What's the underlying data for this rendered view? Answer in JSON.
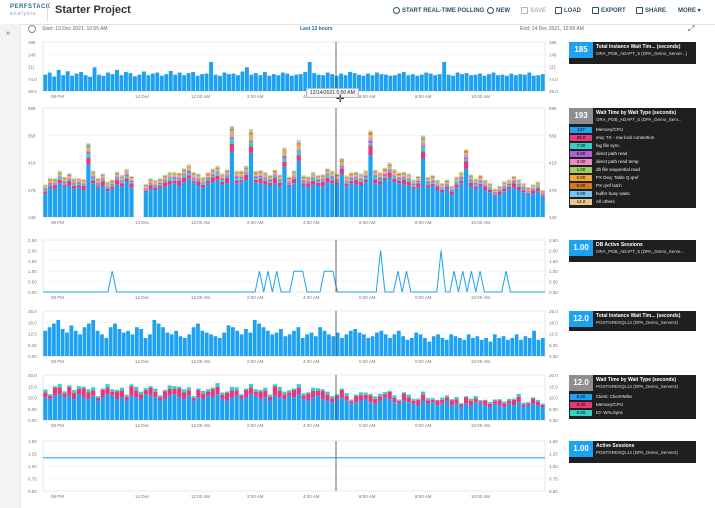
{
  "app": {
    "brand_line1": "PERFSTACK",
    "brand_line2": "analysis",
    "title": "Starter Project"
  },
  "toolbar": [
    {
      "name": "start-real-time-polling-button",
      "label": "START REAL-TIME POLLING",
      "icon": "clock-icon",
      "enabled": true
    },
    {
      "name": "new-button",
      "label": "NEW",
      "icon": "plus-icon",
      "enabled": true
    },
    {
      "name": "save-button",
      "label": "SAVE",
      "icon": "save-icon",
      "enabled": false
    },
    {
      "name": "load-button",
      "label": "LOAD",
      "icon": "folder-icon",
      "enabled": true
    },
    {
      "name": "export-button",
      "label": "EXPORT",
      "icon": "export-icon",
      "enabled": true
    },
    {
      "name": "share-button",
      "label": "SHARE",
      "icon": "share-icon",
      "enabled": true
    },
    {
      "name": "more-button",
      "label": "MORE",
      "icon": "chevron-down-icon",
      "enabled": true
    }
  ],
  "timeline": {
    "start": "Start:  13 Dec 2021, 10:55 AM",
    "range": "Last 12 hours",
    "end": "End:  14 Dec 2021, 10:55 AM"
  },
  "tooltip": "12/14/2021 5:50 AM",
  "colors": {
    "accent": "#1da1f2",
    "panel": "#1f1f1f",
    "gray": "#8e8e8e"
  },
  "chart_data": [
    {
      "type": "bar",
      "title": "Total Instance Wait Tim... (seconds)",
      "subtitle": "ORA_PDB_ADAPT_5 (DPA_Demo_Server...)",
      "current": "185",
      "ylim": [
        0,
        186
      ],
      "yticks_left": [
        "186",
        "148",
        "111",
        "74.0",
        "38.0"
      ],
      "yticks_right": [
        "186",
        "148",
        "111",
        "74.0",
        "38.0"
      ],
      "xticks": [
        "08 PM",
        "14 Dec",
        "12:00 AM",
        "2:00 AM",
        "4:00 AM",
        "6:00 AM",
        "8:00 AM",
        "10:00 AM"
      ],
      "series": [
        {
          "name": "Total Instance Wait Time",
          "color": "#1da1f2",
          "values": [
            62,
            70,
            55,
            80,
            60,
            75,
            58,
            66,
            72,
            60,
            54,
            90,
            62,
            58,
            70,
            64,
            80,
            60,
            72,
            68,
            56,
            62,
            74,
            60,
            66,
            70,
            58,
            64,
            76,
            62,
            70,
            60,
            68,
            72,
            58,
            64,
            66,
            110,
            62,
            58,
            70,
            64,
            66,
            60,
            74,
            90,
            62,
            68,
            60,
            72,
            58,
            64,
            60,
            70,
            66,
            58,
            62,
            64,
            72,
            110,
            68,
            62,
            60,
            70,
            64,
            58,
            66,
            60,
            72,
            68,
            62,
            58,
            66,
            60,
            70,
            64,
            62,
            58,
            60,
            66,
            72,
            60,
            64,
            58,
            62,
            70,
            66,
            60,
            64,
            110,
            62,
            58,
            70,
            64,
            68,
            60,
            62,
            66,
            58,
            64,
            70,
            60,
            62,
            58,
            66,
            60,
            64,
            62,
            70,
            58,
            60,
            64
          ]
        }
      ]
    },
    {
      "type": "bar",
      "title": "Wait Time by Wait Type (seconds)",
      "subtitle": "ORA_PDB_ADAPT_5 (DPA_Demo_Serv...",
      "current": "193",
      "ylim": [
        0,
        698
      ],
      "yticks_left": [
        "698",
        "558",
        "419",
        "279",
        "140"
      ],
      "yticks_right": [
        "698",
        "558",
        "419",
        "279",
        "140"
      ],
      "xticks": [
        "08 PM",
        "14 Dec",
        "12:00 AM",
        "2:00 AM",
        "4:00 AM",
        "6:00 AM",
        "8:00 AM",
        "10:00 AM"
      ],
      "legend": [
        {
          "value": "147",
          "label": "Memory/CPU",
          "color": "#1da1f2"
        },
        {
          "value": "28.0",
          "label": "enq: TX - row lock contention",
          "color": "#e8377a"
        },
        {
          "value": "7.00",
          "label": "log file sync",
          "color": "#35d0c4"
        },
        {
          "value": "6.00",
          "label": "direct path read",
          "color": "#b060d8"
        },
        {
          "value": "3.00",
          "label": "direct path read temp",
          "color": "#f08ac4"
        },
        {
          "value": "1.00",
          "label": "db file sequential read",
          "color": "#9ad060"
        },
        {
          "value": "0.00",
          "label": "PX Deq: Table Q qref",
          "color": "#f0a830"
        },
        {
          "value": "0.00",
          "label": "PX qref latch",
          "color": "#d47820"
        },
        {
          "value": "0.00",
          "label": "buffer busy waits",
          "color": "#70c8f0"
        },
        {
          "value": "14.0",
          "label": "All others",
          "color": "#e8c888"
        }
      ],
      "series_totals": [
        210,
        260,
        250,
        300,
        270,
        280,
        250,
        260,
        240,
        470,
        300,
        260,
        280,
        230,
        250,
        290,
        270,
        320,
        260,
        0,
        0,
        220,
        250,
        240,
        260,
        270,
        290,
        300,
        280,
        310,
        340,
        300,
        280,
        260,
        300,
        310,
        330,
        290,
        300,
        580,
        300,
        310,
        330,
        570,
        310,
        300,
        290,
        280,
        300,
        270,
        450,
        270,
        300,
        500,
        280,
        260,
        290,
        280,
        270,
        310,
        300,
        290,
        380,
        270,
        300,
        290,
        280,
        310,
        550,
        300,
        290,
        330,
        350,
        310,
        300,
        290,
        280,
        250,
        260,
        520,
        260,
        280,
        240,
        220,
        250,
        200,
        260,
        300,
        430,
        270,
        250,
        280,
        240,
        220,
        190,
        200,
        230,
        250,
        260,
        240,
        220,
        200,
        210,
        230,
        180
      ]
    },
    {
      "type": "line",
      "title": "DB Active Sessions",
      "subtitle": "ORA_PDB_ADAPT_5 (DPA_Demo_Serve...",
      "current": "1.00",
      "ylim": [
        0,
        2.5
      ],
      "yticks_left": [
        "2.50",
        "2.00",
        "1.50",
        "1.00",
        "0.50",
        "0.00"
      ],
      "yticks_right": [
        "2.50",
        "2.00",
        "1.50",
        "1.00",
        "0.50",
        "0.00"
      ],
      "xticks": [
        "08 PM",
        "14 Dec",
        "12:00 AM",
        "2:00 AM",
        "4:00 AM",
        "6:00 AM",
        "8:00 AM",
        "10:00 AM"
      ],
      "series": [
        {
          "name": "DB Active Sessions",
          "color": "#1da1f2",
          "values": [
            0,
            0,
            0,
            0,
            0,
            0,
            0,
            0,
            0,
            0,
            0,
            0,
            0,
            0,
            0,
            0,
            1,
            0,
            0,
            0,
            0,
            0,
            0,
            0,
            0,
            0,
            0,
            0,
            0,
            0,
            0,
            0,
            0,
            0,
            0,
            0,
            0,
            0,
            0,
            0,
            0,
            0,
            0,
            0,
            0,
            0,
            0,
            0,
            0,
            0,
            1,
            0,
            1,
            0,
            1,
            0,
            0,
            0,
            1,
            1,
            1,
            0,
            0,
            0,
            0,
            1,
            1,
            1,
            0,
            0,
            0,
            0,
            0,
            0,
            0,
            0,
            0,
            0,
            2,
            0,
            0,
            0,
            1,
            0,
            1,
            0,
            0,
            0,
            0,
            0,
            0,
            0,
            2,
            0,
            0,
            1,
            0,
            1,
            0,
            1,
            0,
            1,
            0,
            0,
            0,
            0,
            0,
            1,
            0,
            0,
            0,
            0,
            0,
            0,
            0,
            0,
            0
          ]
        }
      ]
    },
    {
      "type": "bar",
      "title": "Total Instance Wait Tim... (seconds)",
      "subtitle": "POSTGRESQL12 (DPA_Demo_Server2)",
      "current": "12.0",
      "ylim": [
        0,
        25
      ],
      "yticks_left": [
        "25.0",
        "18.0",
        "12.5",
        "6.25",
        "0.00"
      ],
      "yticks_right": [
        "25.0",
        "18.0",
        "12.5",
        "6.25",
        "0.00"
      ],
      "xticks": [
        "08 PM",
        "14 Dec",
        "12:00 AM",
        "2:00 AM",
        "4:00 AM",
        "6:00 AM",
        "8:00 AM",
        "10:00 AM"
      ],
      "series": [
        {
          "name": "Total Instance Wait Time",
          "color": "#1da1f2",
          "values": [
            14,
            16,
            18,
            20,
            15,
            13,
            17,
            14,
            12,
            16,
            18,
            20,
            14,
            12,
            10,
            16,
            18,
            15,
            13,
            14,
            12,
            16,
            15,
            10,
            12,
            20,
            18,
            16,
            13,
            12,
            14,
            11,
            10,
            12,
            16,
            18,
            14,
            13,
            12,
            11,
            10,
            13,
            17,
            16,
            14,
            12,
            15,
            13,
            20,
            18,
            16,
            14,
            12,
            13,
            15,
            11,
            12,
            14,
            16,
            10,
            12,
            13,
            11,
            16,
            14,
            12,
            11,
            13,
            10,
            12,
            14,
            15,
            13,
            12,
            10,
            11,
            13,
            14,
            12,
            10,
            12,
            14,
            11,
            9,
            10,
            13,
            12,
            10,
            8,
            11,
            12,
            10,
            9,
            12,
            11,
            10,
            9,
            12,
            10,
            11,
            9,
            10,
            8,
            12,
            10,
            11,
            9,
            10,
            12,
            9,
            11,
            10,
            14,
            9,
            10
          ]
        }
      ]
    },
    {
      "type": "bar",
      "title": "Wait Time by Wait Type (seconds)",
      "subtitle": "POSTGRESQL12 (DPA_Demo_Server2)",
      "current": "12.0",
      "ylim": [
        0,
        20
      ],
      "yticks_left": [
        "20.0",
        "15.0",
        "10.0",
        "5.00",
        "0.00"
      ],
      "yticks_right": [
        "20.0",
        "15.0",
        "10.0",
        "5.00",
        "0.00"
      ],
      "xticks": [
        "08 PM",
        "14 Dec",
        "12:00 AM",
        "2:00 AM",
        "4:00 AM",
        "6:00 AM",
        "8:00 AM",
        "10:00 AM"
      ],
      "legend": [
        {
          "value": "0.00",
          "label": "Client: ClientWrite",
          "color": "#1da1f2"
        },
        {
          "value": "0.00",
          "label": "Memory/CPU",
          "color": "#e8377a"
        },
        {
          "value": "0.00",
          "label": "IO: WALSync",
          "color": "#35d0c4"
        }
      ],
      "series_totals": [
        14,
        13,
        15,
        16,
        14,
        15,
        13,
        16,
        14,
        13,
        15,
        12,
        14,
        16,
        15,
        13,
        14,
        12,
        15,
        14,
        13,
        16,
        15,
        14,
        12,
        13,
        15,
        16,
        14,
        13,
        15,
        12,
        14,
        13,
        15,
        14,
        16,
        13,
        12,
        14,
        15,
        13,
        14,
        16,
        15,
        13,
        14,
        12,
        15,
        14,
        13,
        15,
        14,
        16,
        13,
        12,
        14,
        15,
        13,
        12,
        11,
        13,
        14,
        12,
        10,
        11,
        12,
        13,
        11,
        10,
        12,
        14,
        13,
        11,
        10,
        12,
        11,
        10,
        9,
        12,
        10,
        11,
        9,
        10,
        12,
        9,
        10,
        8,
        10,
        9,
        11,
        10,
        9,
        8,
        10,
        9,
        8,
        10,
        9,
        11,
        8,
        9,
        10,
        9,
        8
      ]
    },
    {
      "type": "line",
      "title": "Active Sessions",
      "subtitle": "POSTGRESQL12 (DPA_Demo_Server2)",
      "current": "1.00",
      "ylim": [
        0,
        1.5
      ],
      "yticks_left": [
        "1.50",
        "1.25",
        "1.00",
        "0.75",
        "0.50"
      ],
      "yticks_right": [
        "1.50",
        "1.25",
        "1.00",
        "0.75",
        "0.50"
      ],
      "xticks": [
        "08 PM",
        "14 Dec",
        "12:00 AM",
        "2:00 AM",
        "4:00 AM",
        "6:00 AM",
        "8:00 AM",
        "10:00 AM"
      ],
      "series": [
        {
          "name": "Active Sessions",
          "color": "#1da1f2",
          "values": [
            1,
            1,
            1,
            1,
            1,
            1,
            1,
            1,
            1,
            1,
            1,
            1,
            1,
            1,
            1,
            1,
            1,
            1,
            1,
            1,
            1,
            1,
            1,
            1,
            1,
            1,
            1,
            1,
            1,
            1,
            1,
            1,
            1,
            1,
            1,
            1,
            1,
            1,
            1,
            1,
            1
          ]
        }
      ]
    }
  ]
}
